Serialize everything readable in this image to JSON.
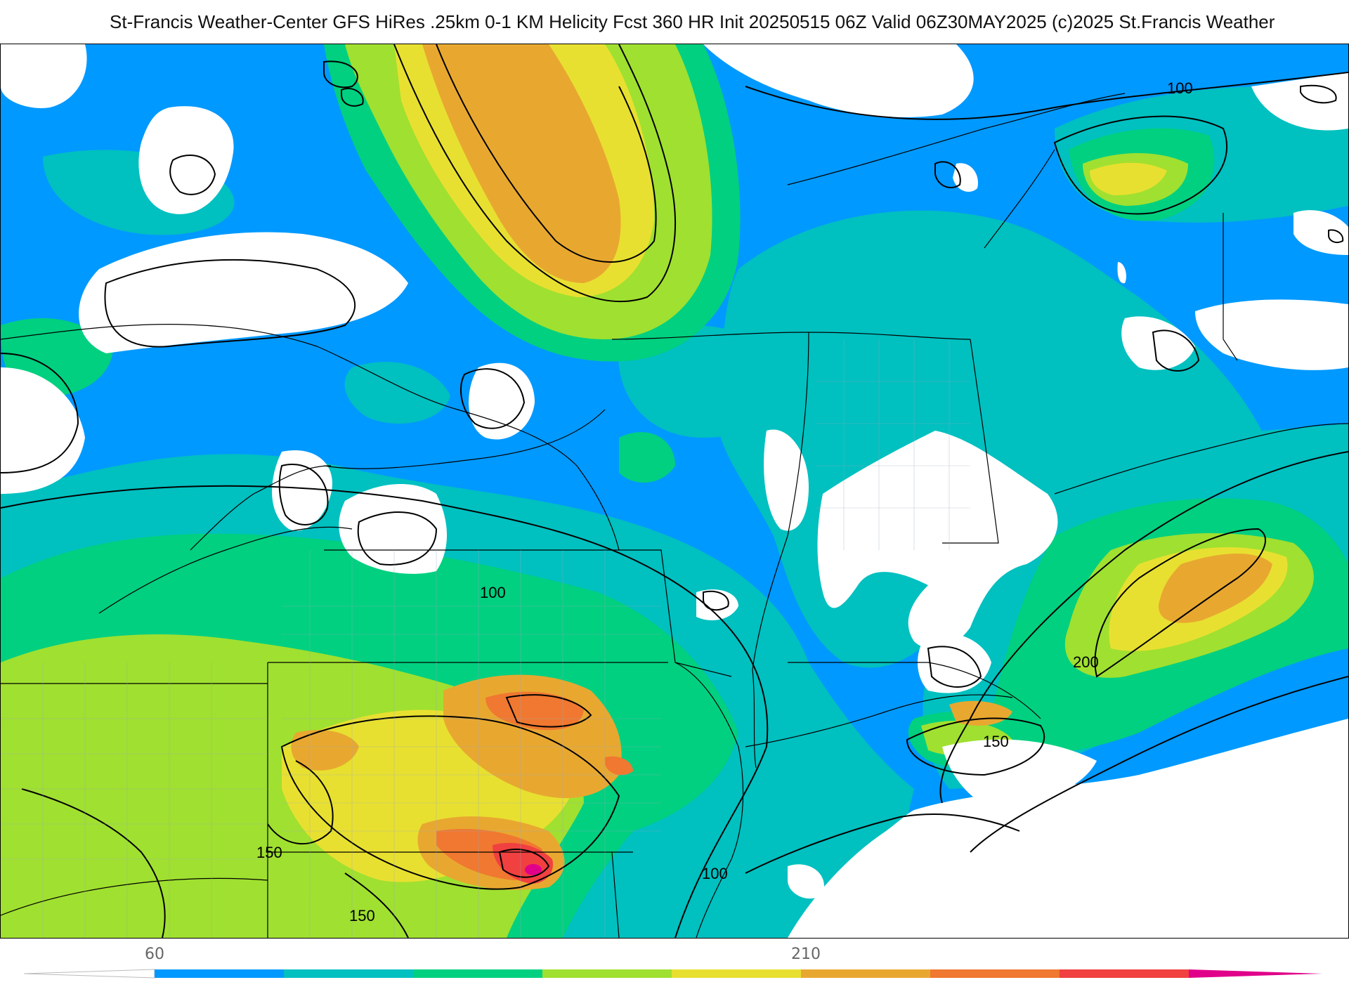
{
  "header": {
    "title": "St-Francis Weather-Center GFS HiRes .25km 0-1 KM Helicity Fcst 360 HR Init 20250515 06Z  Valid 06Z30MAY2025    (c)2025 St.Francis Weather"
  },
  "map": {
    "field": "0-1 KM Helicity",
    "contour_labels": [
      "100",
      "100",
      "100",
      "150",
      "150",
      "150",
      "200"
    ]
  },
  "legend": {
    "tick_labels": [
      "60",
      "210"
    ],
    "colors": [
      "#ffffff",
      "#0099ff",
      "#00c0c0",
      "#00d080",
      "#a0e030",
      "#e8e030",
      "#e8a830",
      "#f07830",
      "#f04040",
      "#e0008a"
    ]
  }
}
